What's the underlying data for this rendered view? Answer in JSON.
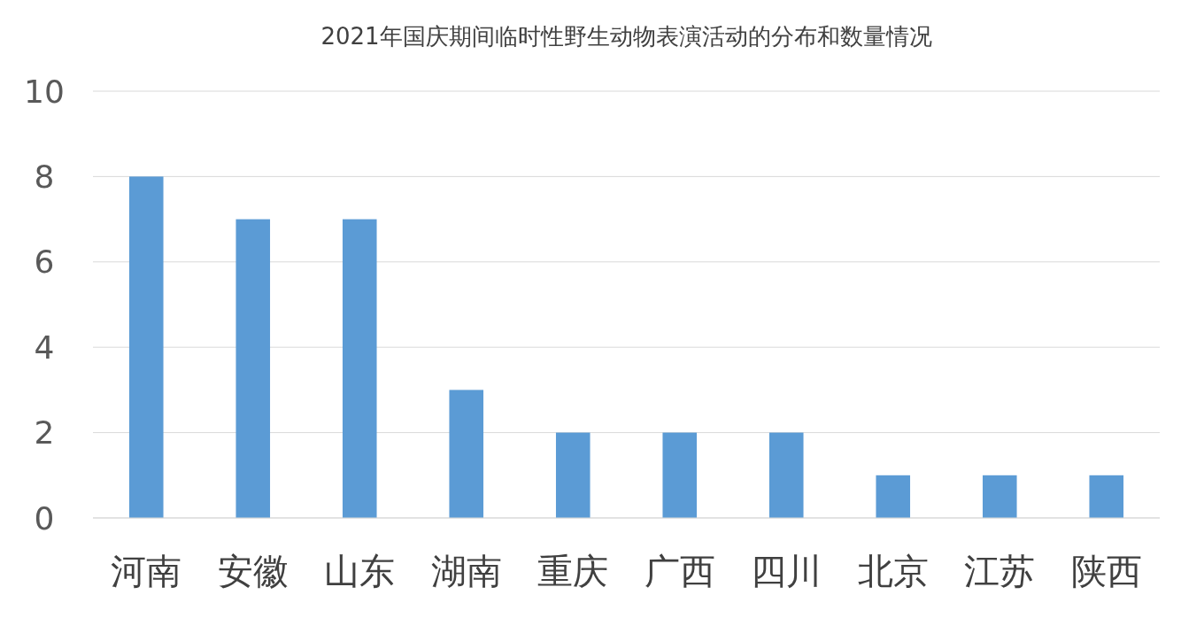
{
  "chart_data": {
    "type": "bar",
    "title": "2021年国庆期间临时性野生动物表演活动的分布和数量情况",
    "categories": [
      "河南",
      "安徽",
      "山东",
      "湖南",
      "重庆",
      "广西",
      "四川",
      "北京",
      "江苏",
      "陕西"
    ],
    "values": [
      8,
      7,
      7,
      3,
      2,
      2,
      2,
      1,
      1,
      1
    ],
    "color": "#5b9bd5",
    "ylim": [
      0,
      10
    ],
    "yticks": [
      0,
      2,
      4,
      6,
      8,
      10
    ],
    "grid": "y"
  }
}
